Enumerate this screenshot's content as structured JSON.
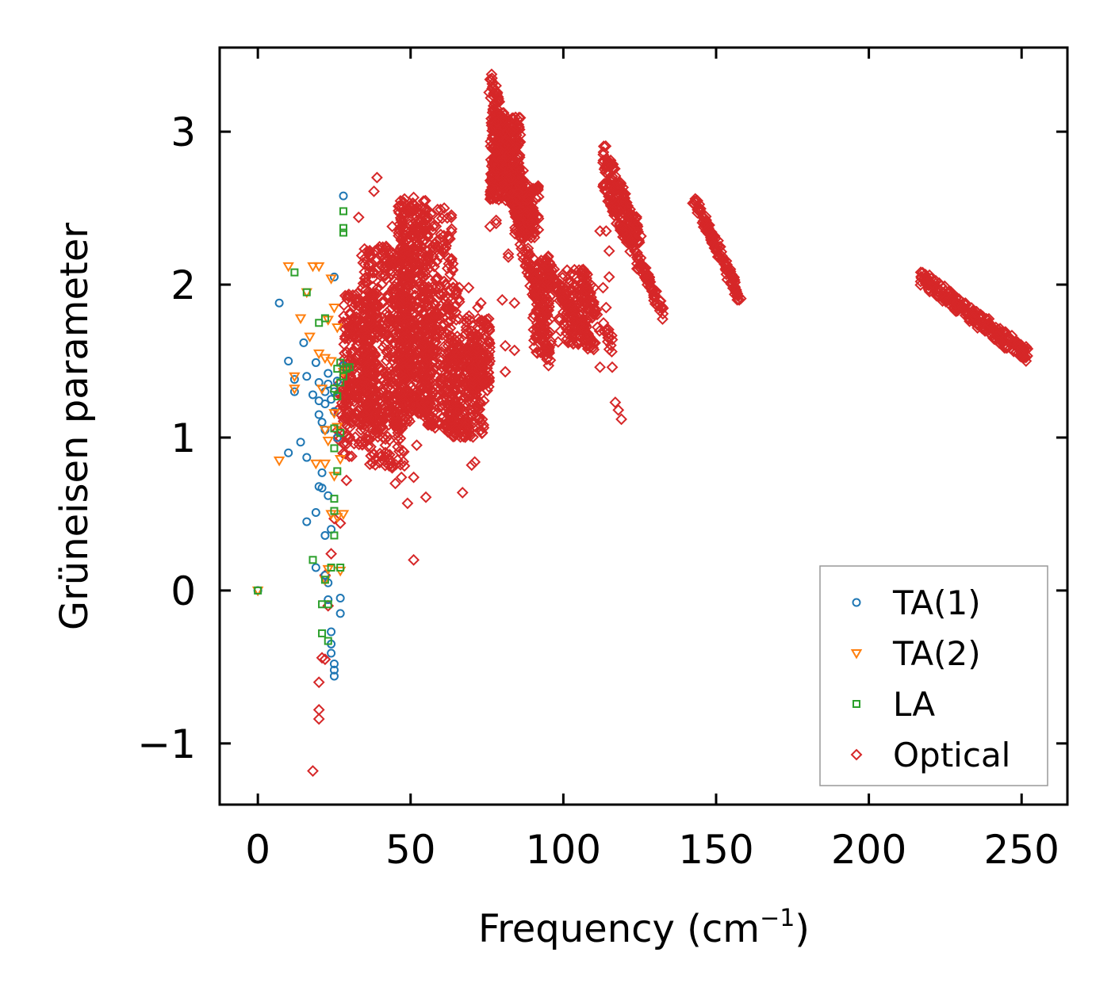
{
  "chart_data": {
    "type": "scatter",
    "title": "",
    "xlabel": "Frequency (cm",
    "xlabel_sup": "−1",
    "xlabel_end": ")",
    "ylabel": "Grüneisen parameter",
    "xlim": [
      -12.5,
      265
    ],
    "ylim": [
      -1.4,
      3.55
    ],
    "xticks": [
      0,
      50,
      100,
      150,
      200,
      250
    ],
    "xtick_labels": [
      "0",
      "50",
      "100",
      "150",
      "200",
      "250"
    ],
    "yticks": [
      -1,
      0,
      1,
      2,
      3
    ],
    "ytick_labels": [
      "−1",
      "0",
      "1",
      "2",
      "3"
    ],
    "grid": false,
    "legend_position": "lower-right",
    "series": [
      {
        "name": "TA(1)",
        "marker": "circle",
        "color": "#1f77b4",
        "points": [
          [
            0,
            0
          ],
          [
            7,
            1.88
          ],
          [
            10,
            1.5
          ],
          [
            10,
            0.9
          ],
          [
            12,
            1.38
          ],
          [
            12,
            1.3
          ],
          [
            14,
            0.97
          ],
          [
            15,
            1.62
          ],
          [
            16,
            1.4
          ],
          [
            16,
            0.87
          ],
          [
            16,
            0.45
          ],
          [
            18,
            1.28
          ],
          [
            19,
            1.49
          ],
          [
            19,
            0.51
          ],
          [
            19,
            0.15
          ],
          [
            20,
            1.36
          ],
          [
            20,
            1.24
          ],
          [
            20,
            1.15
          ],
          [
            20,
            0.68
          ],
          [
            21,
            1.1
          ],
          [
            21,
            0.77
          ],
          [
            21,
            0.67
          ],
          [
            22,
            1.3
          ],
          [
            22,
            1.22
          ],
          [
            22,
            1.05
          ],
          [
            22,
            0.36
          ],
          [
            22,
            0.1
          ],
          [
            23,
            1.42
          ],
          [
            23,
            1.35
          ],
          [
            23,
            0.62
          ],
          [
            23,
            0.05
          ],
          [
            23,
            -0.06
          ],
          [
            24,
            1.25
          ],
          [
            24,
            0.4
          ],
          [
            24,
            -0.27
          ],
          [
            24,
            -0.35
          ],
          [
            24,
            -0.41
          ],
          [
            25,
            2.05
          ],
          [
            25,
            1.3
          ],
          [
            25,
            1.17
          ],
          [
            25,
            -0.48
          ],
          [
            25,
            -0.52
          ],
          [
            25,
            -0.56
          ],
          [
            26,
            1.37
          ],
          [
            26,
            1.0
          ],
          [
            27,
            -0.05
          ],
          [
            27,
            -0.15
          ],
          [
            28,
            2.58
          ],
          [
            28,
            1.47
          ]
        ]
      },
      {
        "name": "TA(2)",
        "marker": "triangle-down",
        "color": "#ff7f0e",
        "points": [
          [
            0,
            0
          ],
          [
            7,
            0.85
          ],
          [
            10,
            2.12
          ],
          [
            12,
            1.4
          ],
          [
            12,
            1.32
          ],
          [
            14,
            1.78
          ],
          [
            16,
            1.95
          ],
          [
            17,
            1.66
          ],
          [
            18,
            2.12
          ],
          [
            19,
            0.83
          ],
          [
            20,
            2.12
          ],
          [
            20,
            1.55
          ],
          [
            21,
            1.32
          ],
          [
            22,
            1.52
          ],
          [
            22,
            1.05
          ],
          [
            22,
            0.83
          ],
          [
            22,
            0.07
          ],
          [
            23,
            1.77
          ],
          [
            23,
            0.98
          ],
          [
            23,
            0.14
          ],
          [
            24,
            2.04
          ],
          [
            24,
            1.5
          ],
          [
            24,
            0.5
          ],
          [
            25,
            1.85
          ],
          [
            25,
            1.16
          ],
          [
            25,
            0.75
          ],
          [
            26,
            1.72
          ],
          [
            26,
            1.07
          ],
          [
            26,
            0.48
          ],
          [
            27,
            0.86
          ],
          [
            27,
            0.13
          ],
          [
            28,
            0.5
          ],
          [
            28,
            1.43
          ]
        ]
      },
      {
        "name": "LA",
        "marker": "square",
        "color": "#2ca02c",
        "points": [
          [
            0,
            0
          ],
          [
            12,
            2.08
          ],
          [
            16,
            1.95
          ],
          [
            18,
            0.2
          ],
          [
            20,
            1.75
          ],
          [
            21,
            -0.28
          ],
          [
            21,
            -0.09
          ],
          [
            22,
            1.78
          ],
          [
            22,
            0.07
          ],
          [
            23,
            -0.33
          ],
          [
            23,
            -0.09
          ],
          [
            24,
            0.15
          ],
          [
            25,
            1.32
          ],
          [
            25,
            1.06
          ],
          [
            25,
            0.93
          ],
          [
            25,
            0.6
          ],
          [
            25,
            0.52
          ],
          [
            25,
            0.36
          ],
          [
            26,
            1.45
          ],
          [
            26,
            1.27
          ],
          [
            26,
            0.78
          ],
          [
            27,
            1.49
          ],
          [
            27,
            1.36
          ],
          [
            27,
            1.03
          ],
          [
            27,
            0.15
          ],
          [
            28,
            2.48
          ],
          [
            28,
            2.37
          ],
          [
            28,
            2.34
          ],
          [
            28,
            1.4
          ],
          [
            29,
            1.45
          ],
          [
            30,
            1.46
          ]
        ]
      },
      {
        "name": "Optical",
        "marker": "diamond",
        "color": "#d62728",
        "clusters": [
          {
            "x": [
              28,
              38
            ],
            "y": [
              1.1,
              1.95
            ],
            "n": 220
          },
          {
            "x": [
              34,
              50
            ],
            "y": [
              1.05,
              2.25
            ],
            "n": 480
          },
          {
            "x": [
              46,
              56
            ],
            "y": [
              1.15,
              2.55
            ],
            "n": 460
          },
          {
            "x": [
              54,
              66
            ],
            "y": [
              1.05,
              2.0
            ],
            "n": 300
          },
          {
            "x": [
              62,
              74
            ],
            "y": [
              1.0,
              1.6
            ],
            "n": 220
          },
          {
            "x": [
              68,
              76
            ],
            "y": [
              1.3,
              1.8
            ],
            "n": 130
          },
          {
            "x": [
              76,
              86
            ],
            "y": [
              2.55,
              3.1
            ],
            "n": 340
          },
          {
            "x": [
              84,
              92
            ],
            "y": [
              2.3,
              2.65
            ],
            "n": 130
          },
          {
            "x": [
              90,
              96
            ],
            "y": [
              1.55,
              2.2
            ],
            "n": 120
          },
          {
            "x": [
              98,
              108
            ],
            "y": [
              1.6,
              2.1
            ],
            "n": 120
          },
          {
            "x": [
              26,
              36
            ],
            "y": [
              0.85,
              1.35
            ],
            "n": 70
          },
          {
            "x": [
              36,
              48
            ],
            "y": [
              0.8,
              1.3
            ],
            "n": 80
          },
          {
            "x": [
              54,
              64
            ],
            "y": [
              2.0,
              2.5
            ],
            "n": 60
          }
        ],
        "strips": [
          {
            "x0": 76,
            "y0": 3.3,
            "x1": 90,
            "y1": 2.4,
            "n": 150,
            "w": 0.1
          },
          {
            "x0": 82,
            "y0": 2.7,
            "x1": 96,
            "y1": 1.5,
            "n": 120,
            "w": 0.08
          },
          {
            "x0": 94,
            "y0": 2.1,
            "x1": 110,
            "y1": 1.6,
            "n": 90,
            "w": 0.05
          },
          {
            "x0": 113,
            "y0": 2.85,
            "x1": 125,
            "y1": 2.3,
            "n": 130,
            "w": 0.07
          },
          {
            "x0": 113,
            "y0": 2.65,
            "x1": 133,
            "y1": 1.8,
            "n": 140,
            "w": 0.05
          },
          {
            "x0": 143,
            "y0": 2.57,
            "x1": 158,
            "y1": 1.9,
            "n": 110,
            "w": 0.04
          },
          {
            "x0": 217,
            "y0": 2.05,
            "x1": 252,
            "y1": 1.53,
            "n": 240,
            "w": 0.05
          },
          {
            "x0": 106,
            "y0": 2.0,
            "x1": 116,
            "y1": 1.6,
            "n": 50,
            "w": 0.08
          }
        ],
        "points": [
          [
            18,
            -1.18
          ],
          [
            20,
            -0.84
          ],
          [
            20,
            -0.78
          ],
          [
            20,
            -0.6
          ],
          [
            21,
            -0.44
          ],
          [
            22,
            -0.45
          ],
          [
            22,
            0.1
          ],
          [
            23,
            -0.1
          ],
          [
            24,
            0.24
          ],
          [
            25,
            0.47
          ],
          [
            27,
            0.44
          ],
          [
            29,
            0.72
          ],
          [
            33,
            2.44
          ],
          [
            37,
            0.88
          ],
          [
            38,
            2.61
          ],
          [
            39,
            2.7
          ],
          [
            41,
            2.22
          ],
          [
            42,
            2.25
          ],
          [
            44,
            2.38
          ],
          [
            44,
            0.81
          ],
          [
            45,
            0.7
          ],
          [
            46,
            0.98
          ],
          [
            47,
            0.74
          ],
          [
            48,
            2.56
          ],
          [
            49,
            0.57
          ],
          [
            51,
            2.57
          ],
          [
            51,
            0.2
          ],
          [
            51,
            0.74
          ],
          [
            52,
            0.95
          ],
          [
            55,
            0.61
          ],
          [
            57,
            2.35
          ],
          [
            59,
            2.43
          ],
          [
            61,
            2.5
          ],
          [
            65,
            1.05
          ],
          [
            67,
            0.64
          ],
          [
            68,
            1.07
          ],
          [
            69,
            1.98
          ],
          [
            70,
            0.82
          ],
          [
            71,
            0.84
          ],
          [
            72,
            1.85
          ],
          [
            73,
            1.88
          ],
          [
            74,
            1.24
          ],
          [
            75,
            1.5
          ],
          [
            76,
            2.38
          ],
          [
            77,
            2.6
          ],
          [
            78,
            2.42
          ],
          [
            78,
            2.4
          ],
          [
            80,
            1.9
          ],
          [
            81,
            1.6
          ],
          [
            81,
            1.43
          ],
          [
            82,
            2.18
          ],
          [
            82,
            2.2
          ],
          [
            84,
            1.88
          ],
          [
            84,
            1.57
          ],
          [
            87,
            2.5
          ],
          [
            88,
            2.55
          ],
          [
            88,
            2.33
          ],
          [
            89,
            2.1
          ],
          [
            92,
            1.72
          ],
          [
            94,
            1.58
          ],
          [
            95,
            1.52
          ],
          [
            97,
            2.1
          ],
          [
            100,
            1.82
          ],
          [
            108,
            1.58
          ],
          [
            109,
            2.0
          ],
          [
            110,
            1.98
          ],
          [
            112,
            2.35
          ],
          [
            112,
            1.46
          ],
          [
            113,
            1.98
          ],
          [
            114,
            1.85
          ],
          [
            114,
            2.35
          ],
          [
            115,
            2.05
          ],
          [
            115,
            2.22
          ],
          [
            116,
            1.64
          ],
          [
            116,
            1.46
          ],
          [
            117,
            1.23
          ],
          [
            118,
            1.18
          ],
          [
            119,
            1.12
          ]
        ]
      }
    ]
  }
}
